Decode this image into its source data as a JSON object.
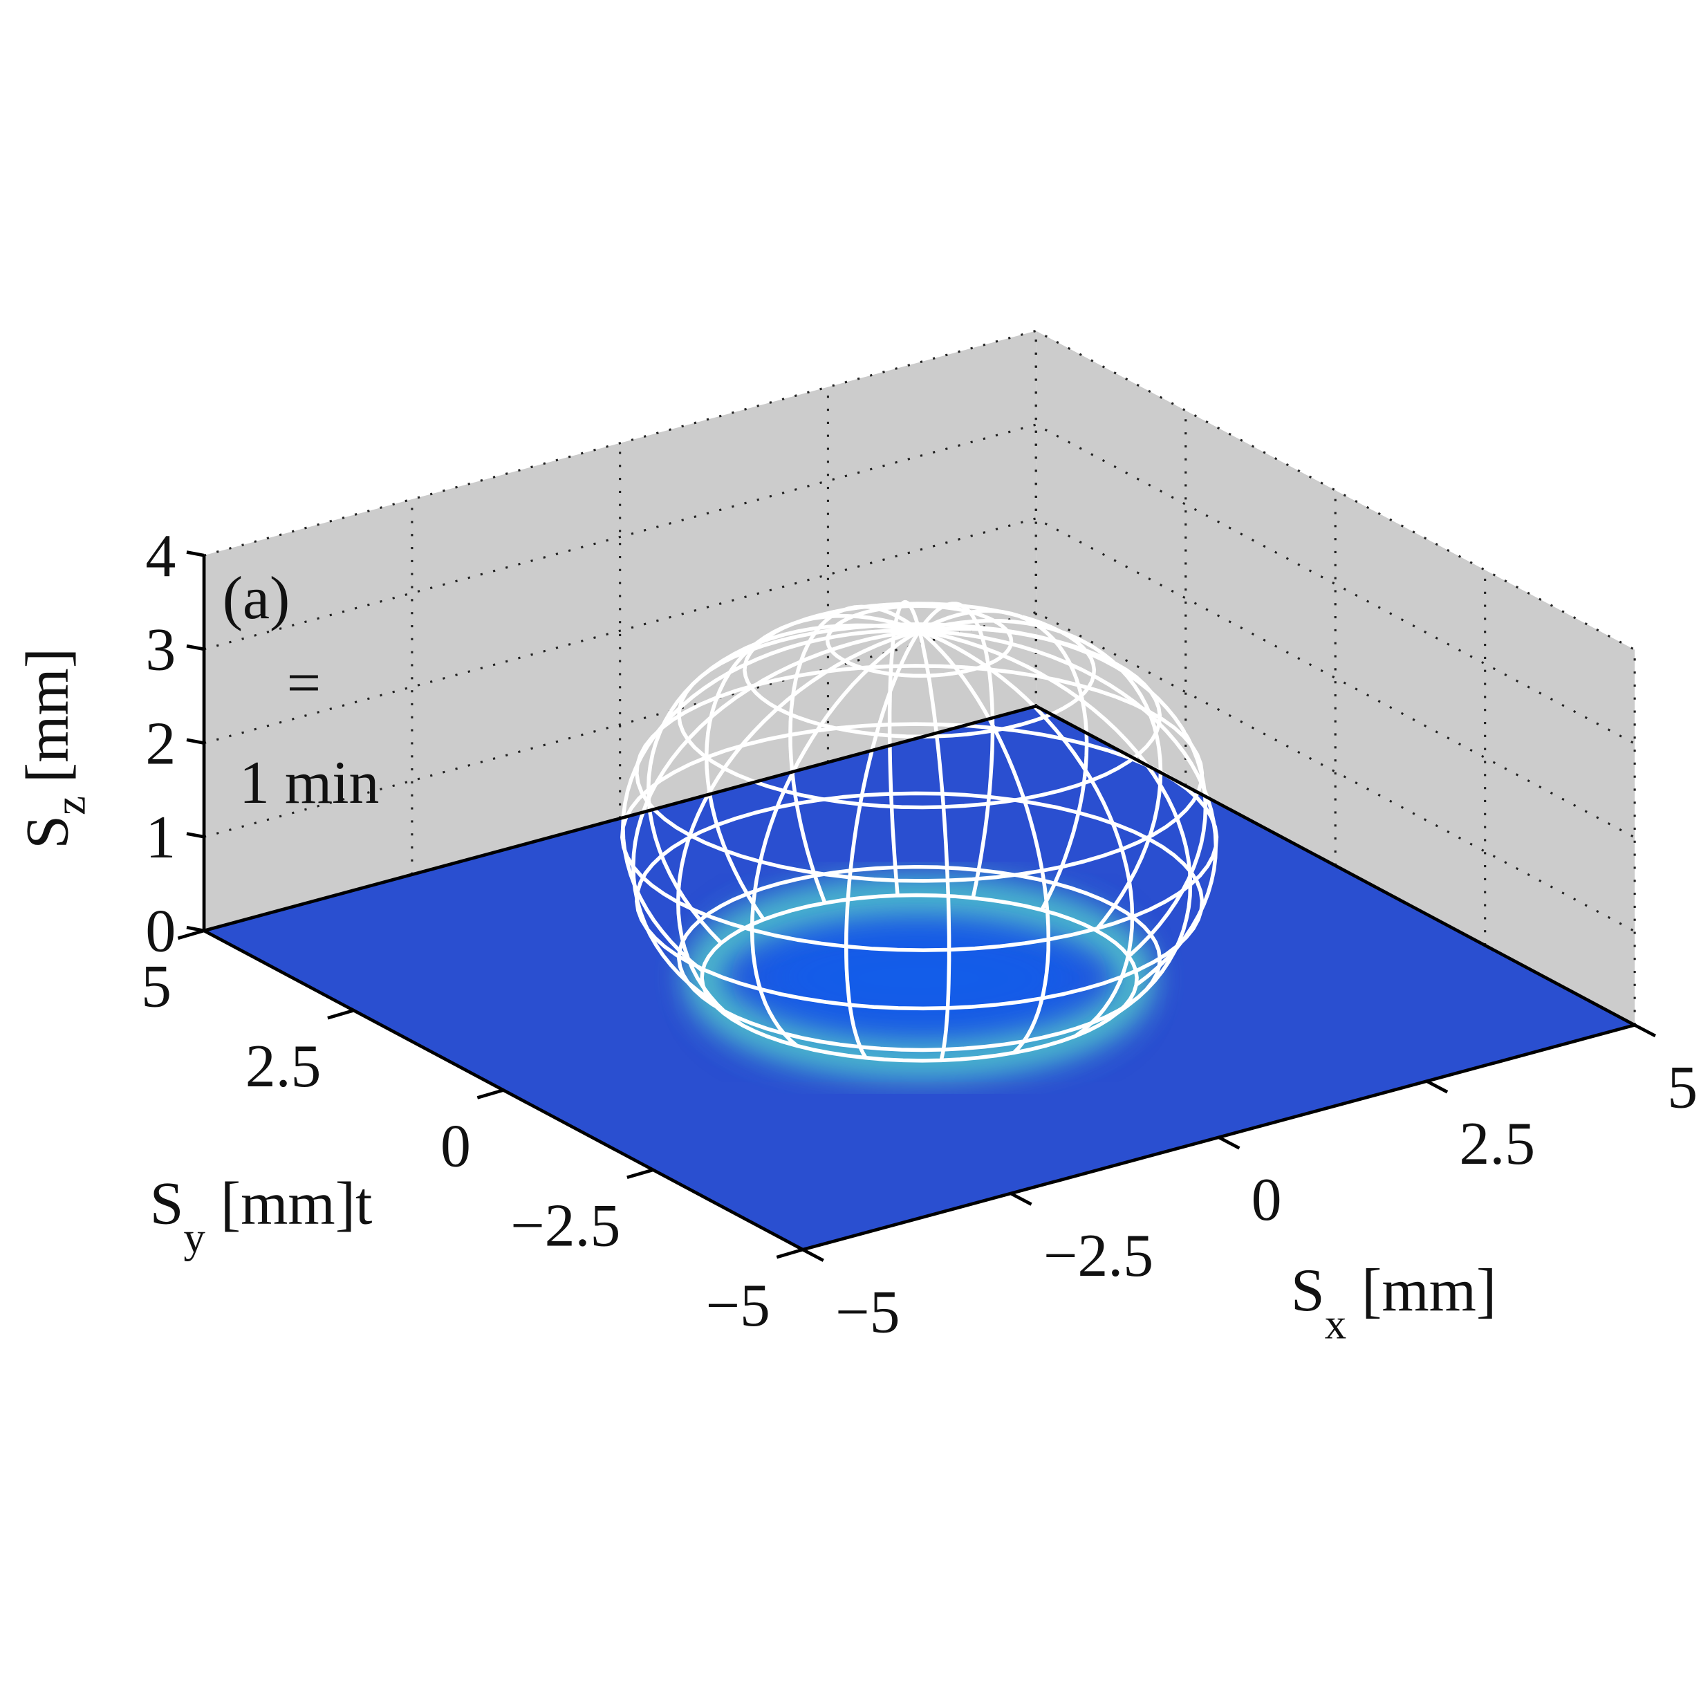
{
  "chart_data": {
    "type": "ellipsoid3d",
    "annotations": [
      "(a)",
      "=",
      "1 min"
    ],
    "xlabel": {
      "symbol": "S",
      "subscript": "x",
      "unit": "[mm]"
    },
    "ylabel": {
      "symbol": "S",
      "subscript": "y",
      "unit": "[mm]t"
    },
    "zlabel": {
      "symbol": "S",
      "subscript": "z",
      "unit": "[mm]"
    },
    "xlim": [
      -5,
      5
    ],
    "ylim": [
      -5,
      5
    ],
    "zlim": [
      0,
      4
    ],
    "xticks": [
      {
        "value": -5,
        "label": "−5"
      },
      {
        "value": -2.5,
        "label": "−2.5"
      },
      0,
      2.5,
      5
    ],
    "yticks": [
      {
        "value": -5,
        "label": "−5"
      },
      {
        "value": -2.5,
        "label": "−2.5"
      },
      0,
      2.5,
      5
    ],
    "zticks": [
      0,
      1,
      2,
      3,
      4
    ],
    "grid": true,
    "ellipsoid": {
      "center": [
        0,
        0,
        1.5
      ],
      "radii": [
        2.9,
        2.9,
        2.2
      ],
      "color": "#ffffff"
    },
    "floor_color": "#2a4fd0",
    "ring_color": "#5fe0c8",
    "wall_color": "#cccccc"
  }
}
